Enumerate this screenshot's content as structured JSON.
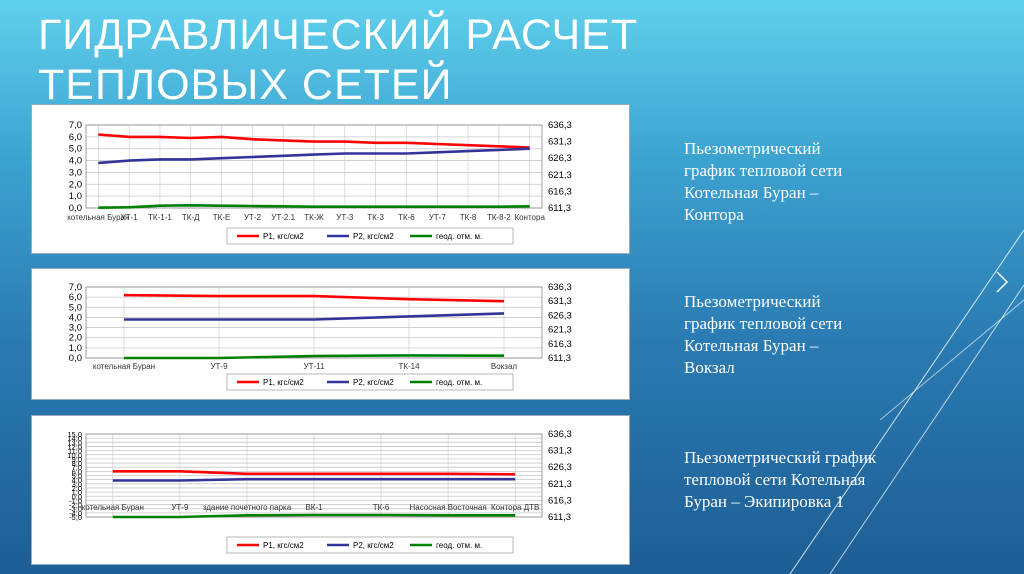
{
  "title": {
    "line1": "ГИДРАВЛИЧЕСКИЙ РАСЧЕТ",
    "line2": "ТЕПЛОВЫХ СЕТЕЙ"
  },
  "captions": [
    {
      "lines": [
        "Пьезометрический",
        "график тепловой сети",
        "Котельная Буран –",
        "Контора"
      ]
    },
    {
      "lines": [
        "Пьезометрический",
        "график тепловой сети",
        "Котельная Буран –",
        "Вокзал"
      ]
    },
    {
      "lines": [
        "Пьезометрический график",
        "тепловой сети Котельная",
        "Буран – Экипировка 1"
      ]
    }
  ],
  "legend": {
    "p1": "P1, кгс/см2",
    "p2": "P2, кгс/см2",
    "geo": "геод. отм. м."
  },
  "colors": {
    "p1": "#ff0000",
    "p2": "#333399",
    "geo": "#008000",
    "grid": "#c8c8c8"
  },
  "chart_data": [
    {
      "type": "line",
      "x": [
        "котельная Буран",
        "УТ-1",
        "ТК-1-1",
        "ТК-Д",
        "ТК-Е",
        "УТ-2",
        "УТ-2.1",
        "ТК-Ж",
        "УТ-3",
        "ТК-3",
        "ТК-6",
        "УТ-7",
        "ТК-8",
        "ТК-8-2",
        "Контора"
      ],
      "series": [
        {
          "name": "P1, кгс/см2",
          "axis": "left",
          "values": [
            6.2,
            6.0,
            6.0,
            5.9,
            6.0,
            5.8,
            5.7,
            5.6,
            5.6,
            5.5,
            5.5,
            5.4,
            5.3,
            5.2,
            5.1
          ]
        },
        {
          "name": "P2, кгс/см2",
          "axis": "left",
          "values": [
            3.8,
            4.0,
            4.1,
            4.1,
            4.2,
            4.3,
            4.4,
            4.5,
            4.6,
            4.6,
            4.6,
            4.7,
            4.8,
            4.9,
            5.0
          ]
        },
        {
          "name": "геод. отм. м.",
          "axis": "right",
          "values": [
            611.4,
            611.5,
            612.0,
            612.1,
            612.0,
            611.9,
            611.8,
            611.7,
            611.7,
            611.7,
            611.7,
            611.7,
            611.7,
            611.7,
            611.8
          ]
        }
      ],
      "ylim": [
        0,
        7
      ],
      "yticks": [
        "0,0",
        "1,0",
        "2,0",
        "3,0",
        "4,0",
        "5,0",
        "6,0",
        "7,0"
      ],
      "y2lim": [
        611.3,
        636.3
      ],
      "y2ticks": [
        "611,3",
        "616,3",
        "621,3",
        "626,3",
        "631,3",
        "636,3"
      ],
      "grid": true,
      "legend": "bottom"
    },
    {
      "type": "line",
      "x": [
        "котельная Буран",
        "УТ-9",
        "УТ-11",
        "ТК-14",
        "Вокзал"
      ],
      "series": [
        {
          "name": "P1, кгс/см2",
          "axis": "left",
          "values": [
            6.2,
            6.1,
            6.1,
            5.8,
            5.6
          ]
        },
        {
          "name": "P2, кгс/см2",
          "axis": "left",
          "values": [
            3.8,
            3.8,
            3.8,
            4.1,
            4.4
          ]
        },
        {
          "name": "геод. отм. м.",
          "axis": "right",
          "values": [
            611.3,
            611.3,
            612.0,
            612.2,
            612.1
          ]
        }
      ],
      "ylim": [
        0,
        7
      ],
      "yticks": [
        "0,0",
        "1,0",
        "2,0",
        "3,0",
        "4,0",
        "5,0",
        "6,0",
        "7,0"
      ],
      "y2lim": [
        611.3,
        636.3
      ],
      "y2ticks": [
        "611,3",
        "616,3",
        "621,3",
        "626,3",
        "631,3",
        "636,3"
      ],
      "grid": true,
      "legend": "bottom"
    },
    {
      "type": "line",
      "x": [
        "котельная Буран",
        "УТ-9",
        "здание почетного парка",
        "ВК-1",
        "ТК-6",
        "Насосная Восточная",
        "Контора ДТВ"
      ],
      "series": [
        {
          "name": "P1, кгс/см2",
          "axis": "left",
          "values": [
            6.0,
            6.0,
            5.4,
            5.4,
            5.4,
            5.4,
            5.3
          ]
        },
        {
          "name": "P2, кгс/см2",
          "axis": "left",
          "values": [
            3.8,
            3.8,
            4.1,
            4.1,
            4.1,
            4.1,
            4.1
          ]
        },
        {
          "name": "геод. отм. м.",
          "axis": "right",
          "values": [
            611.3,
            611.3,
            611.8,
            611.9,
            611.9,
            611.8,
            611.8
          ]
        }
      ],
      "ylim": [
        -5,
        15
      ],
      "yticks": [
        "-5,0",
        "-4,0",
        "-3,0",
        "-2,0",
        "-1,0",
        "0,0",
        "1,0",
        "2,0",
        "3,0",
        "4,0",
        "5,0",
        "6,0",
        "7,0",
        "8,0",
        "9,0",
        "10,0",
        "11,0",
        "12,0",
        "13,0",
        "14,0",
        "15,0"
      ],
      "y2lim": [
        611.3,
        636.3
      ],
      "y2ticks": [
        "611,3",
        "616,3",
        "621,3",
        "626,3",
        "631,3",
        "636,3"
      ],
      "grid": true,
      "legend": "bottom"
    }
  ]
}
